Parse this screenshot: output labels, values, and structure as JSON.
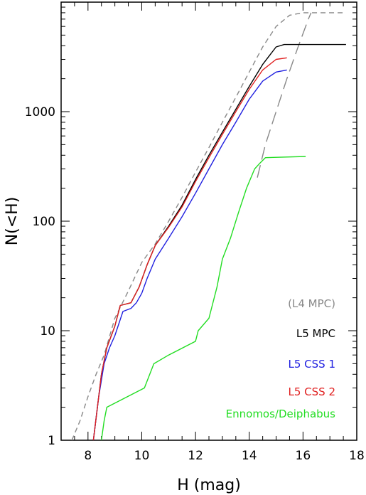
{
  "chart_data": {
    "type": "line",
    "title": "",
    "xlabel": "H (mag)",
    "ylabel": "N(<H)",
    "xlim": [
      7,
      18
    ],
    "ylim": [
      1,
      10000
    ],
    "y_scale": "log",
    "x_ticks": [
      8,
      10,
      12,
      14,
      16,
      18
    ],
    "y_ticks": [
      1,
      10,
      100,
      1000
    ],
    "grid": false,
    "legend_placement": "bottom-right",
    "series": [
      {
        "name": "(L4 MPC)",
        "color": "#888888",
        "dash": "dashed",
        "points": [
          [
            7.4,
            1.0
          ],
          [
            7.7,
            1.5
          ],
          [
            8.0,
            2.5
          ],
          [
            8.3,
            4
          ],
          [
            8.6,
            6
          ],
          [
            9.0,
            13
          ],
          [
            9.5,
            23
          ],
          [
            10.0,
            42
          ],
          [
            10.5,
            62
          ],
          [
            11.0,
            100
          ],
          [
            11.5,
            165
          ],
          [
            12.0,
            280
          ],
          [
            12.5,
            470
          ],
          [
            13.0,
            800
          ],
          [
            13.5,
            1350
          ],
          [
            14.0,
            2300
          ],
          [
            14.5,
            3900
          ],
          [
            15.0,
            6000
          ],
          [
            15.5,
            7600
          ],
          [
            16.0,
            8000
          ],
          [
            17.5,
            8000
          ]
        ]
      },
      {
        "name": "",
        "color": "#888888",
        "dash": "long-dashed",
        "points": [
          [
            14.3,
            250
          ],
          [
            14.6,
            500
          ],
          [
            15.0,
            1000
          ],
          [
            15.4,
            2000
          ],
          [
            15.8,
            3800
          ],
          [
            16.2,
            7000
          ],
          [
            16.3,
            8000
          ]
        ]
      },
      {
        "name": "L5 MPC",
        "color": "#000000",
        "dash": "solid",
        "points": [
          [
            8.2,
            1
          ],
          [
            8.35,
            2
          ],
          [
            8.5,
            4
          ],
          [
            8.7,
            7
          ],
          [
            9.0,
            11
          ],
          [
            9.2,
            17
          ],
          [
            9.6,
            18
          ],
          [
            9.9,
            25
          ],
          [
            10.2,
            40
          ],
          [
            10.5,
            60
          ],
          [
            11.0,
            90
          ],
          [
            11.5,
            140
          ],
          [
            12.0,
            240
          ],
          [
            12.5,
            400
          ],
          [
            13.0,
            650
          ],
          [
            13.5,
            1050
          ],
          [
            14.0,
            1700
          ],
          [
            14.5,
            2700
          ],
          [
            15.0,
            3900
          ],
          [
            15.3,
            4100
          ],
          [
            17.6,
            4100
          ]
        ]
      },
      {
        "name": "L5 CSS 1",
        "color": "#2020e0",
        "dash": "solid",
        "points": [
          [
            8.2,
            1
          ],
          [
            8.4,
            2.5
          ],
          [
            8.6,
            5
          ],
          [
            8.8,
            7
          ],
          [
            9.0,
            9
          ],
          [
            9.3,
            15
          ],
          [
            9.6,
            16
          ],
          [
            9.8,
            18
          ],
          [
            10.0,
            22
          ],
          [
            10.2,
            30
          ],
          [
            10.5,
            45
          ],
          [
            11.0,
            70
          ],
          [
            11.5,
            110
          ],
          [
            12.0,
            180
          ],
          [
            12.5,
            300
          ],
          [
            13.0,
            500
          ],
          [
            13.5,
            800
          ],
          [
            14.0,
            1300
          ],
          [
            14.5,
            1900
          ],
          [
            15.0,
            2300
          ],
          [
            15.4,
            2400
          ]
        ]
      },
      {
        "name": "L5 CSS 2",
        "color": "#e02020",
        "dash": "solid",
        "points": [
          [
            8.2,
            1
          ],
          [
            8.35,
            2
          ],
          [
            8.5,
            4
          ],
          [
            8.7,
            7
          ],
          [
            9.0,
            11
          ],
          [
            9.2,
            17
          ],
          [
            9.6,
            18
          ],
          [
            9.9,
            25
          ],
          [
            10.2,
            40
          ],
          [
            10.5,
            60
          ],
          [
            11.0,
            88
          ],
          [
            11.5,
            135
          ],
          [
            12.0,
            230
          ],
          [
            12.5,
            380
          ],
          [
            13.0,
            620
          ],
          [
            13.5,
            1000
          ],
          [
            14.0,
            1600
          ],
          [
            14.5,
            2400
          ],
          [
            15.0,
            3000
          ],
          [
            15.4,
            3100
          ]
        ]
      },
      {
        "name": "Ennomos/Deiphabus",
        "color": "#22dd22",
        "dash": "solid",
        "points": [
          [
            8.5,
            1
          ],
          [
            8.6,
            1.5
          ],
          [
            8.7,
            2
          ],
          [
            10.1,
            3
          ],
          [
            10.45,
            5
          ],
          [
            11.0,
            6
          ],
          [
            12.0,
            8
          ],
          [
            12.1,
            10
          ],
          [
            12.5,
            13
          ],
          [
            12.8,
            25
          ],
          [
            13.0,
            45
          ],
          [
            13.3,
            70
          ],
          [
            13.6,
            120
          ],
          [
            13.9,
            200
          ],
          [
            14.2,
            300
          ],
          [
            14.4,
            340
          ],
          [
            14.6,
            380
          ],
          [
            16.1,
            390
          ]
        ]
      }
    ]
  },
  "legend": {
    "l4_mpc": "(L4 MPC)",
    "l5_mpc": "L5 MPC",
    "l5_css1": "L5 CSS 1",
    "l5_css2": "L5 CSS 2",
    "ennomos": "Ennomos/Deiphabus"
  }
}
